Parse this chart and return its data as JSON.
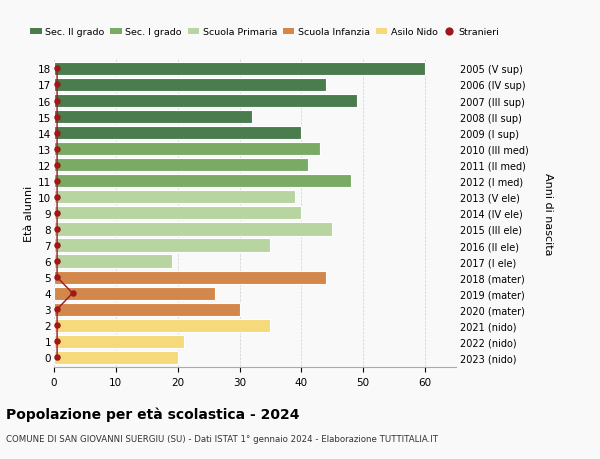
{
  "ages": [
    18,
    17,
    16,
    15,
    14,
    13,
    12,
    11,
    10,
    9,
    8,
    7,
    6,
    5,
    4,
    3,
    2,
    1,
    0
  ],
  "labels_right": [
    "2005 (V sup)",
    "2006 (IV sup)",
    "2007 (III sup)",
    "2008 (II sup)",
    "2009 (I sup)",
    "2010 (III med)",
    "2011 (II med)",
    "2012 (I med)",
    "2013 (V ele)",
    "2014 (IV ele)",
    "2015 (III ele)",
    "2016 (II ele)",
    "2017 (I ele)",
    "2018 (mater)",
    "2019 (mater)",
    "2020 (mater)",
    "2021 (nido)",
    "2022 (nido)",
    "2023 (nido)"
  ],
  "values": [
    60,
    44,
    49,
    32,
    40,
    43,
    41,
    48,
    39,
    40,
    45,
    35,
    19,
    44,
    26,
    30,
    35,
    21,
    20
  ],
  "stranieri": [
    0.5,
    0.5,
    0.5,
    0.5,
    0.5,
    0.5,
    0.5,
    0.5,
    0.5,
    0.5,
    0.5,
    0.5,
    0.5,
    0.5,
    3,
    0.5,
    0.5,
    0.5,
    0.5
  ],
  "bar_colors": [
    "#4a7c4e",
    "#4a7c4e",
    "#4a7c4e",
    "#4a7c4e",
    "#4a7c4e",
    "#7aab64",
    "#7aab64",
    "#7aab64",
    "#b8d4a0",
    "#b8d4a0",
    "#b8d4a0",
    "#b8d4a0",
    "#b8d4a0",
    "#d4874b",
    "#d4874b",
    "#d4874b",
    "#f5d97a",
    "#f5d97a",
    "#f5d97a"
  ],
  "legend_labels": [
    "Sec. II grado",
    "Sec. I grado",
    "Scuola Primaria",
    "Scuola Infanzia",
    "Asilo Nido",
    "Stranieri"
  ],
  "legend_colors": [
    "#4a7c4e",
    "#7aab64",
    "#b8d4a0",
    "#d4874b",
    "#f5d97a",
    "#b22222"
  ],
  "title": "Popolazione per età scolastica - 2024",
  "subtitle": "COMUNE DI SAN GIOVANNI SUERGIU (SU) - Dati ISTAT 1° gennaio 2024 - Elaborazione TUTTITALIA.IT",
  "ylabel_left": "Età alunni",
  "ylabel_right": "Anni di nascita",
  "xlim": [
    0,
    65
  ],
  "xticks": [
    0,
    10,
    20,
    30,
    40,
    50,
    60
  ],
  "bg_color": "#f9f9f9",
  "stranieri_color": "#9e1a1a",
  "line_color": "#9e1a1a"
}
